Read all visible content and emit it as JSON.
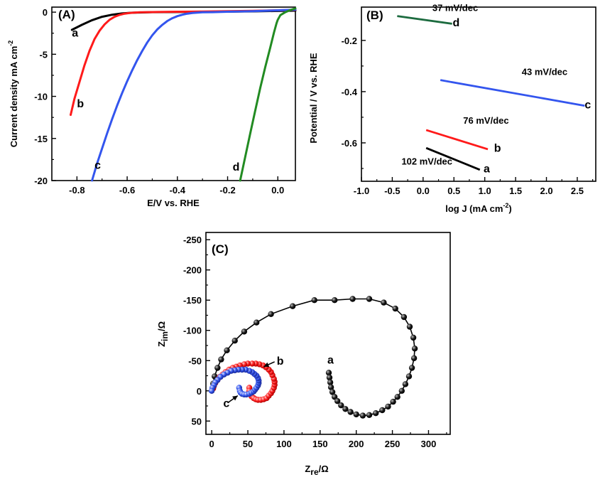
{
  "colors": {
    "a": "#000000",
    "b": "#ff1a1a",
    "c": "#3355ee",
    "d": "#228b22",
    "dTafel": "#1c6b3f"
  },
  "chart_data": [
    {
      "panel_label": "(A)",
      "type": "line",
      "xlabel": "E/V vs. RHE",
      "ylabel": "Current density mA cm",
      "ylabel_sup": "-2",
      "xlim": [
        -0.9,
        0.07
      ],
      "ylim": [
        -20,
        0.6
      ],
      "xticks": [
        -0.8,
        -0.6,
        -0.4,
        -0.2,
        0.0
      ],
      "xtick_labels": [
        "-0.8",
        "-0.6",
        "-0.4",
        "-0.2",
        "0.0"
      ],
      "yticks": [
        0,
        -5,
        -10,
        -15,
        -20
      ],
      "ytick_labels": [
        "0",
        "-5",
        "-10",
        "-15",
        "-20"
      ],
      "series": [
        {
          "name": "a",
          "color": "#000000",
          "label_at": [
            -0.82,
            -2.9
          ],
          "x": [
            -0.82,
            -0.78,
            -0.74,
            -0.7,
            -0.66,
            -0.62,
            -0.58,
            -0.54,
            -0.5,
            -0.4,
            -0.3,
            -0.2,
            -0.1,
            0.0,
            0.07
          ],
          "y": [
            -2.1,
            -1.5,
            -0.95,
            -0.55,
            -0.3,
            -0.15,
            -0.07,
            -0.03,
            0.0,
            0.02,
            0.04,
            0.06,
            0.09,
            0.14,
            0.18
          ]
        },
        {
          "name": "b",
          "color": "#ff1a1a",
          "label_at": [
            -0.8,
            -11.3
          ],
          "x": [
            -0.825,
            -0.81,
            -0.79,
            -0.77,
            -0.75,
            -0.73,
            -0.71,
            -0.69,
            -0.67,
            -0.65,
            -0.63,
            -0.61,
            -0.59,
            -0.57,
            -0.55,
            -0.52,
            -0.48,
            -0.4,
            -0.3,
            -0.2,
            -0.1,
            0.0,
            0.07
          ],
          "y": [
            -12.2,
            -10.3,
            -8.3,
            -6.3,
            -4.6,
            -3.2,
            -2.2,
            -1.45,
            -0.9,
            -0.55,
            -0.32,
            -0.18,
            -0.1,
            -0.05,
            -0.02,
            0.0,
            0.02,
            0.05,
            0.08,
            0.11,
            0.15,
            0.22,
            0.27
          ]
        },
        {
          "name": "c",
          "color": "#3355ee",
          "label_at": [
            -0.73,
            -18.6
          ],
          "x": [
            -0.74,
            -0.72,
            -0.7,
            -0.68,
            -0.66,
            -0.64,
            -0.62,
            -0.6,
            -0.58,
            -0.56,
            -0.54,
            -0.52,
            -0.5,
            -0.48,
            -0.46,
            -0.44,
            -0.42,
            -0.4,
            -0.38,
            -0.36,
            -0.34,
            -0.32,
            -0.3,
            -0.26,
            -0.2,
            -0.1,
            0.0,
            0.07
          ],
          "y": [
            -20.0,
            -18.0,
            -16.2,
            -14.4,
            -12.7,
            -11.1,
            -9.6,
            -8.2,
            -6.9,
            -5.7,
            -4.6,
            -3.6,
            -2.75,
            -2.05,
            -1.5,
            -1.05,
            -0.72,
            -0.47,
            -0.3,
            -0.18,
            -0.1,
            -0.05,
            -0.02,
            0.0,
            0.05,
            0.12,
            0.22,
            0.3
          ]
        },
        {
          "name": "d",
          "color": "#228b22",
          "label_at": [
            -0.18,
            -18.8
          ],
          "x": [
            -0.15,
            -0.13,
            -0.11,
            -0.09,
            -0.07,
            -0.05,
            -0.03,
            -0.015,
            -0.005,
            0.0,
            0.01,
            0.03,
            0.05,
            0.07
          ],
          "y": [
            -20.0,
            -17.2,
            -14.4,
            -11.7,
            -9.0,
            -6.5,
            -4.2,
            -2.4,
            -1.3,
            -0.9,
            -0.35,
            0.0,
            0.25,
            0.45
          ]
        }
      ]
    },
    {
      "panel_label": "(B)",
      "type": "line",
      "xlabel": "log J (mA cm",
      "xlabel_sup": "-2",
      "xlabel_end": ")",
      "ylabel": "Potential / V vs. RHE",
      "xlim": [
        -1.0,
        2.8
      ],
      "ylim": [
        -0.75,
        -0.07
      ],
      "xticks": [
        -1.0,
        -0.5,
        0.0,
        0.5,
        1.0,
        1.5,
        2.0,
        2.5
      ],
      "xtick_labels": [
        "-1.0",
        "-0.5",
        "0.0",
        "0.5",
        "1.0",
        "1.5",
        "2.0",
        "2.5"
      ],
      "yticks": [
        -0.2,
        -0.4,
        -0.6
      ],
      "ytick_labels": [
        "-0.2",
        "-0.4",
        "-0.6"
      ],
      "series": [
        {
          "name": "d",
          "color": "#1c6b3f",
          "x": [
            -0.42,
            0.47
          ],
          "y": [
            -0.105,
            -0.135
          ],
          "label_at": [
            0.48,
            -0.145
          ],
          "slope_label": "37 mV/dec",
          "slope_at": [
            0.15,
            -0.085
          ]
        },
        {
          "name": "c",
          "color": "#3355ee",
          "x": [
            0.28,
            2.62
          ],
          "y": [
            -0.355,
            -0.455
          ],
          "label_at": [
            2.62,
            -0.465
          ],
          "slope_label": "43 mV/dec",
          "slope_at": [
            1.6,
            -0.335
          ]
        },
        {
          "name": "b",
          "color": "#ff1a1a",
          "x": [
            0.05,
            1.05
          ],
          "y": [
            -0.55,
            -0.625
          ],
          "label_at": [
            1.15,
            -0.635
          ],
          "slope_label": "76 mV/dec",
          "slope_at": [
            0.65,
            -0.525
          ]
        },
        {
          "name": "a",
          "color": "#000000",
          "x": [
            0.05,
            0.92
          ],
          "y": [
            -0.62,
            -0.705
          ],
          "label_at": [
            0.98,
            -0.715
          ],
          "slope_label": "102 mV/dec",
          "slope_at": [
            -0.35,
            -0.685
          ]
        }
      ]
    },
    {
      "panel_label": "(C)",
      "type": "scatter",
      "xlabel": "Z",
      "xlabel_sub": "re",
      "xlabel_end": "/Ω",
      "ylabel": "Z",
      "ylabel_sub": "im",
      "ylabel_end": "/Ω",
      "xlim": [
        -8,
        330
      ],
      "ylim": [
        72,
        -262
      ],
      "xticks": [
        0,
        50,
        100,
        150,
        200,
        250,
        300
      ],
      "xtick_labels": [
        "0",
        "50",
        "100",
        "150",
        "200",
        "250",
        "300"
      ],
      "yticks": [
        -250,
        -200,
        -150,
        -100,
        -50,
        0,
        50
      ],
      "ytick_labels": [
        "-250",
        "-200",
        "-150",
        "-100",
        "-50",
        "0",
        "50"
      ],
      "series": [
        {
          "name": "a",
          "color": "#000000",
          "label_at": [
            160,
            -45
          ],
          "show_line": true,
          "points": [
            [
              162,
              -30
            ],
            [
              163,
              -22
            ],
            [
              164,
              -14
            ],
            [
              165,
              -6
            ],
            [
              167,
              2
            ],
            [
              170,
              10
            ],
            [
              174,
              17
            ],
            [
              179,
              24
            ],
            [
              185,
              30
            ],
            [
              192,
              35
            ],
            [
              200,
              39
            ],
            [
              209,
              41
            ],
            [
              218,
              40
            ],
            [
              227,
              37
            ],
            [
              236,
              32
            ],
            [
              244,
              26
            ],
            [
              251,
              18
            ],
            [
              257,
              10
            ],
            [
              263,
              0
            ],
            [
              268,
              -11
            ],
            [
              273,
              -24
            ],
            [
              277,
              -38
            ],
            [
              280,
              -54
            ],
            [
              281,
              -70
            ],
            [
              279,
              -88
            ],
            [
              274,
              -106
            ],
            [
              266,
              -122
            ],
            [
              254,
              -136
            ],
            [
              238,
              -146
            ],
            [
              218,
              -152
            ],
            [
              195,
              -152
            ],
            [
              170,
              -150
            ],
            [
              142,
              -150
            ],
            [
              112,
              -140
            ],
            [
              82,
              -127
            ],
            [
              62,
              -113
            ],
            [
              45,
              -98
            ],
            [
              32,
              -83
            ],
            [
              21,
              -67
            ],
            [
              13,
              -52
            ],
            [
              8,
              -38
            ],
            [
              4,
              -24
            ],
            [
              2,
              -12
            ],
            [
              1,
              -4
            ]
          ]
        },
        {
          "name": "b",
          "color": "#ff1a1a",
          "label_at": [
            90,
            -43
          ],
          "show_line": false,
          "points": [
            [
              52,
              -5
            ],
            [
              52,
              0
            ],
            [
              53,
              5
            ],
            [
              55,
              9
            ],
            [
              58,
              12
            ],
            [
              61,
              14
            ],
            [
              64,
              15
            ],
            [
              68,
              15
            ],
            [
              72,
              14
            ],
            [
              76,
              12
            ],
            [
              79,
              8
            ],
            [
              82,
              4
            ],
            [
              84,
              0
            ],
            [
              86,
              -5
            ],
            [
              87,
              -10
            ],
            [
              87,
              -15
            ],
            [
              86,
              -20
            ],
            [
              84,
              -26
            ],
            [
              82,
              -31
            ],
            [
              79,
              -35
            ],
            [
              75,
              -39
            ],
            [
              71,
              -42
            ],
            [
              66,
              -44
            ],
            [
              61,
              -45
            ],
            [
              56,
              -45
            ],
            [
              50,
              -45
            ],
            [
              45,
              -44
            ],
            [
              39,
              -42
            ],
            [
              34,
              -40
            ],
            [
              29,
              -38
            ],
            [
              24,
              -35
            ],
            [
              19,
              -31
            ],
            [
              15,
              -27
            ],
            [
              11,
              -23
            ],
            [
              8,
              -18
            ],
            [
              5,
              -13
            ],
            [
              3,
              -8
            ],
            [
              2,
              -4
            ]
          ]
        },
        {
          "name": "c",
          "color": "#3355ee",
          "label_at": [
            16,
            27
          ],
          "show_line": false,
          "points": [
            [
              38,
              -5
            ],
            [
              39,
              0
            ],
            [
              40,
              3
            ],
            [
              42,
              5
            ],
            [
              45,
              6
            ],
            [
              48,
              6
            ],
            [
              52,
              5
            ],
            [
              55,
              3
            ],
            [
              58,
              1
            ],
            [
              60,
              -2
            ],
            [
              62,
              -5
            ],
            [
              64,
              -9
            ],
            [
              65,
              -13
            ],
            [
              65,
              -17
            ],
            [
              64,
              -21
            ],
            [
              62,
              -25
            ],
            [
              59,
              -28
            ],
            [
              56,
              -31
            ],
            [
              52,
              -33
            ],
            [
              47,
              -35
            ],
            [
              42,
              -35
            ],
            [
              37,
              -35
            ],
            [
              32,
              -34
            ],
            [
              27,
              -33
            ],
            [
              22,
              -30
            ],
            [
              17,
              -27
            ],
            [
              12,
              -23
            ],
            [
              8,
              -18
            ],
            [
              5,
              -14
            ],
            [
              3,
              -9
            ],
            [
              1,
              -5
            ],
            [
              0,
              0
            ]
          ]
        }
      ]
    }
  ]
}
